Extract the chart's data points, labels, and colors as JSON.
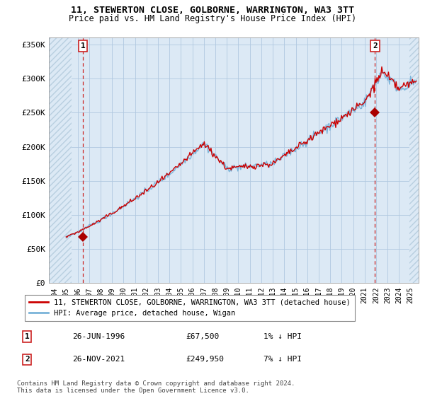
{
  "title1": "11, STEWERTON CLOSE, GOLBORNE, WARRINGTON, WA3 3TT",
  "title2": "Price paid vs. HM Land Registry's House Price Index (HPI)",
  "ylabel_ticks": [
    "£0",
    "£50K",
    "£100K",
    "£150K",
    "£200K",
    "£250K",
    "£300K",
    "£350K"
  ],
  "ylabel_values": [
    0,
    50000,
    100000,
    150000,
    200000,
    250000,
    300000,
    350000
  ],
  "ylim": [
    0,
    360000
  ],
  "xlim_start": 1993.5,
  "xlim_end": 2025.7,
  "sale1_x": 1996.48,
  "sale1_y": 67500,
  "sale1_label": "1",
  "sale2_x": 2021.9,
  "sale2_y": 249950,
  "sale2_label": "2",
  "legend_line1": "11, STEWERTON CLOSE, GOLBORNE, WARRINGTON, WA3 3TT (detached house)",
  "legend_line2": "HPI: Average price, detached house, Wigan",
  "table_row1": [
    "1",
    "26-JUN-1996",
    "£67,500",
    "1% ↓ HPI"
  ],
  "table_row2": [
    "2",
    "26-NOV-2021",
    "£249,950",
    "7% ↓ HPI"
  ],
  "footnote": "Contains HM Land Registry data © Crown copyright and database right 2024.\nThis data is licensed under the Open Government Licence v3.0.",
  "hpi_color": "#7ab3d9",
  "price_color": "#cc0000",
  "sale_marker_color": "#aa0000",
  "bg_color": "#dce9f5",
  "hatch_color": "#b8cfe0",
  "grid_color": "#b0c8e0",
  "sale_vline_color": "#cc2222",
  "chart_bg": "#dce9f5"
}
